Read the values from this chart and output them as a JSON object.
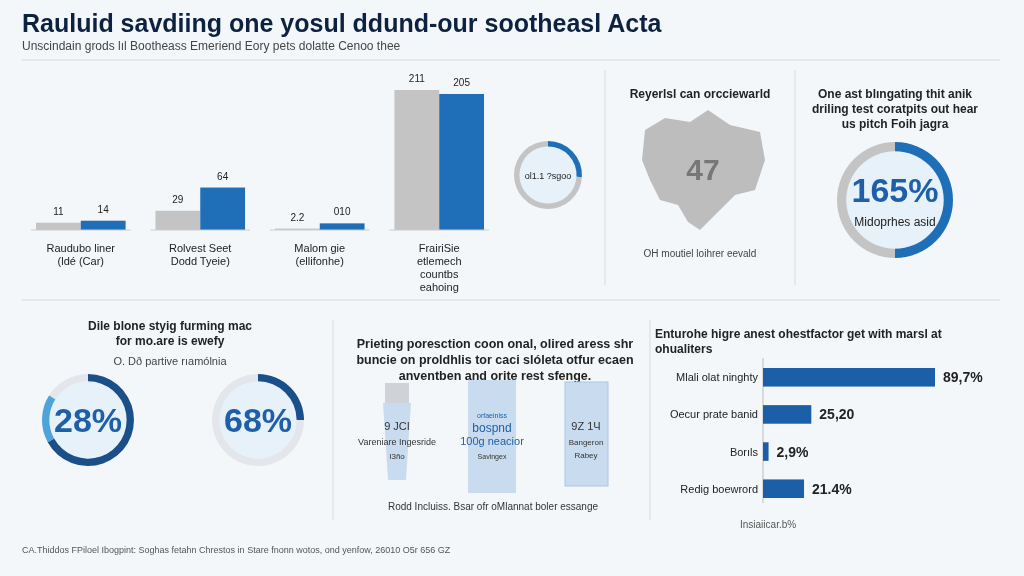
{
  "chart_data": [
    {
      "type": "bar",
      "title": "Rauluid savdiing one yosul ddund-our sootheasl Acta",
      "subtitle": "Unscindain grods lıl Bootheass Emeriend Eory pets dolatte Cenoo thee",
      "categories": [
        "Raudubo liner (ldé (Car)",
        "Rolvest Seet Dodd Tyeie)",
        "Malom gie (ellifonhe)",
        "FrairiSie etlemech countbs eahoing"
      ],
      "series": [
        {
          "color": "#c4c4c4",
          "values": [
            11,
            29,
            2.2,
            211
          ],
          "value_labels": [
            "11",
            "29",
            "2.2",
            "211"
          ]
        },
        {
          "color": "#1f6fb8",
          "values": [
            14,
            64,
            10,
            205
          ],
          "value_labels": [
            "14",
            "64",
            "010",
            "205"
          ]
        }
      ],
      "annotations": [
        "CA.Thiddos FPiloel Ibogpint: Soghas fetahn Chrestos in Stare fnonn wotos, ond yenfow, 26010 O5r 656 GZ"
      ]
    },
    {
      "type": "donut",
      "categories": [
        null,
        null
      ],
      "values": [
        26,
        74
      ],
      "colors": [
        "#1f6fb8",
        "#c4c4c4"
      ],
      "annotations": [
        "ol1.1 ?sgoo"
      ]
    },
    {
      "type": "other",
      "title": "Reyerlsl can orcciewarld",
      "annotations": [
        "47",
        "OH moutiel loihrer eevald"
      ]
    },
    {
      "type": "donut",
      "title": "One ast blıngating thit anik driling test coratpits out hear us pitch Foih jagra",
      "categories": [
        null,
        null
      ],
      "values": [
        50,
        50
      ],
      "colors": [
        "#1f6fb8",
        "#c4c4c4"
      ],
      "annotations": [
        "165%",
        "Midoprhes asid"
      ]
    },
    {
      "type": "donut",
      "title": "Dile blone styig furming mac for mo.are is ewefy",
      "subtitle": "O. Dð partive rıamólnia",
      "categories": [
        null,
        null,
        null
      ],
      "values": [
        67,
        17,
        16
      ],
      "colors": [
        "#1b4f8a",
        "#4ea3d8",
        "#e3e6ea"
      ],
      "annotations": [
        "28%"
      ]
    },
    {
      "type": "donut",
      "categories": [
        null,
        null
      ],
      "values": [
        25,
        75
      ],
      "colors": [
        "#1b4f8a",
        "#e3e6ea"
      ],
      "annotations": [
        "68%"
      ]
    },
    {
      "type": "other",
      "title": "Prieting poresction coon onal, olired aress shr buncie on proldhlis tor caci slóleta otfur ecaen anventben and orite rest sfenge.",
      "annotations": [
        "9 JCI",
        "Vareniare Ingesride",
        "I3ño",
        "orfaeiniss",
        "bospnd",
        "100g neacior",
        "Savingex",
        "9Z 1Ч",
        "Bangeron",
        "Rabey",
        "Rodd Incluiss. Bsar ofr oMlannat boler essange"
      ]
    },
    {
      "type": "bar",
      "orientation": "horizontal",
      "title": "Enturohe higre anest ohestfactor get with marsl at ohualiters",
      "xlabel": "Insiaiicar.b%",
      "categories": [
        "Mlali olat ninghty",
        "Oecur prate banid",
        "Borıls",
        "Redig boewrord"
      ],
      "colors": [
        "#1a5fa8",
        "#1a5fa8",
        "#1a5fa8",
        "#1a5fa8"
      ],
      "values": [
        89.7,
        25.2,
        2.9,
        21.4
      ],
      "value_labels": [
        "89,7%",
        "25,20",
        "2,9%",
        "21.4%"
      ]
    }
  ]
}
